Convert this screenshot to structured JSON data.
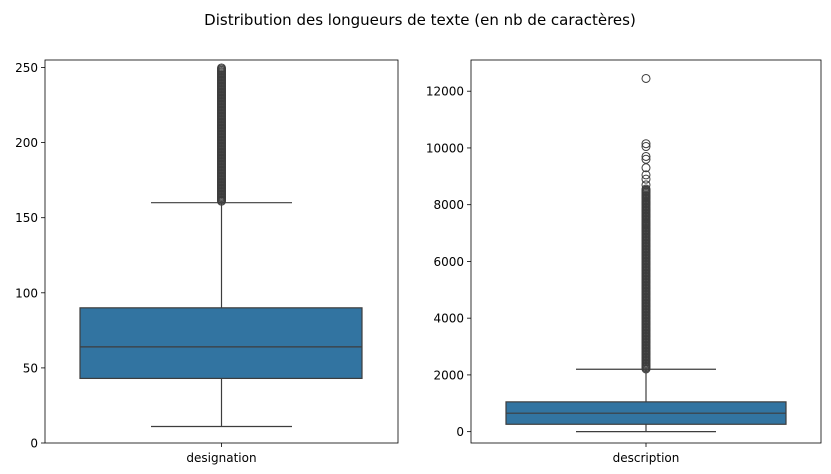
{
  "title": "Distribution des longueurs de texte (en nb de caractères)",
  "colors": {
    "box": "#3274a1",
    "line": "#3d3d3d",
    "outlier": "#3d3d3d"
  },
  "chart_data": [
    {
      "type": "box",
      "category": "designation",
      "ylim": [
        0,
        255
      ],
      "yticks": [
        0,
        50,
        100,
        150,
        200,
        250
      ],
      "ytick_labels": [
        "0",
        "50",
        "100",
        "150",
        "200",
        "250"
      ],
      "whisker_low": 11,
      "q1": 43,
      "median": 64,
      "q3": 90,
      "whisker_high": 160,
      "outliers": {
        "min": 161,
        "max": 250
      }
    },
    {
      "type": "box",
      "category": "description",
      "ylim": [
        -400,
        13100
      ],
      "yticks": [
        0,
        2000,
        4000,
        6000,
        8000,
        10000,
        12000
      ],
      "ytick_labels": [
        "0",
        "2000",
        "4000",
        "6000",
        "8000",
        "10000",
        "12000"
      ],
      "whisker_low": 0,
      "q1": 260,
      "median": 650,
      "q3": 1050,
      "whisker_high": 2200,
      "outliers": {
        "min": 2210,
        "max": 12450
      }
    }
  ]
}
